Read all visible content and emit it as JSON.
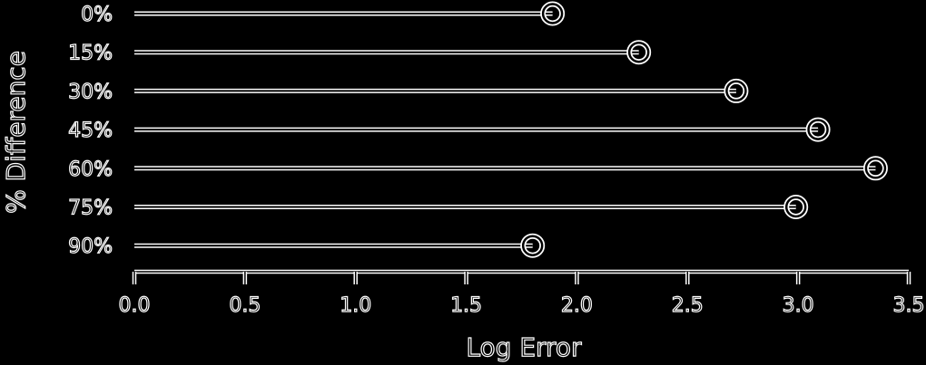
{
  "colors": {
    "background": "#000000",
    "foreground": "#ffffff"
  },
  "chart_data": {
    "type": "lollipop",
    "title": "",
    "xlabel": "Log Error",
    "ylabel": "% Difference",
    "categories": [
      "0%",
      "15%",
      "30%",
      "45%",
      "60%",
      "75%",
      "90%"
    ],
    "values": [
      1.89,
      2.28,
      2.72,
      3.09,
      3.35,
      2.99,
      1.8
    ],
    "xlim": [
      0,
      3.5
    ],
    "xticks": [
      0.0,
      0.5,
      1.0,
      1.5,
      2.0,
      2.5,
      3.0,
      3.5
    ],
    "xtick_labels": [
      "0.0",
      "0.5",
      "1.0",
      "1.5",
      "2.0",
      "2.5",
      "3.0",
      "3.5"
    ],
    "grid": false,
    "legend": "none"
  }
}
